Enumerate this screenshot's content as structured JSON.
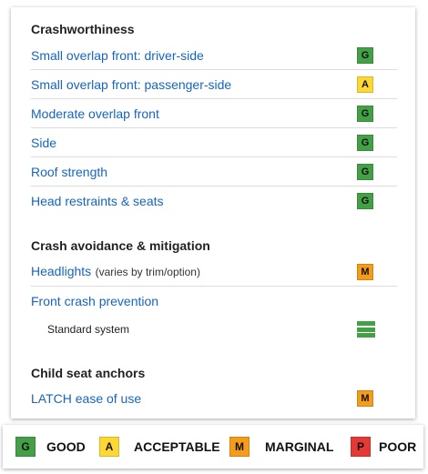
{
  "crashworthiness": {
    "title": "Crashworthiness",
    "items": [
      {
        "label": "Small overlap front: driver-side",
        "rating": "G"
      },
      {
        "label": "Small overlap front: passenger-side",
        "rating": "A"
      },
      {
        "label": "Moderate overlap front",
        "rating": "G"
      },
      {
        "label": "Side",
        "rating": "G"
      },
      {
        "label": "Roof strength",
        "rating": "G"
      },
      {
        "label": "Head restraints & seats",
        "rating": "G"
      }
    ]
  },
  "avoidance": {
    "title": "Crash avoidance & mitigation",
    "headlights": {
      "label": "Headlights",
      "note": "(varies by trim/option)",
      "rating": "M"
    },
    "front_crash": {
      "label": "Front crash prevention",
      "sub_label": "Standard system"
    }
  },
  "child_seat": {
    "title": "Child seat anchors",
    "latch": {
      "label": "LATCH ease of use",
      "rating": "M"
    }
  },
  "legend": [
    {
      "code": "G",
      "label": "GOOD"
    },
    {
      "code": "A",
      "label": "ACCEPTABLE"
    },
    {
      "code": "M",
      "label": "MARGINAL"
    },
    {
      "code": "P",
      "label": "POOR"
    }
  ],
  "colors": {
    "G": "#43a047",
    "A": "#fdd835",
    "M": "#f59c1a",
    "P": "#e53935",
    "link": "#1565c0"
  }
}
